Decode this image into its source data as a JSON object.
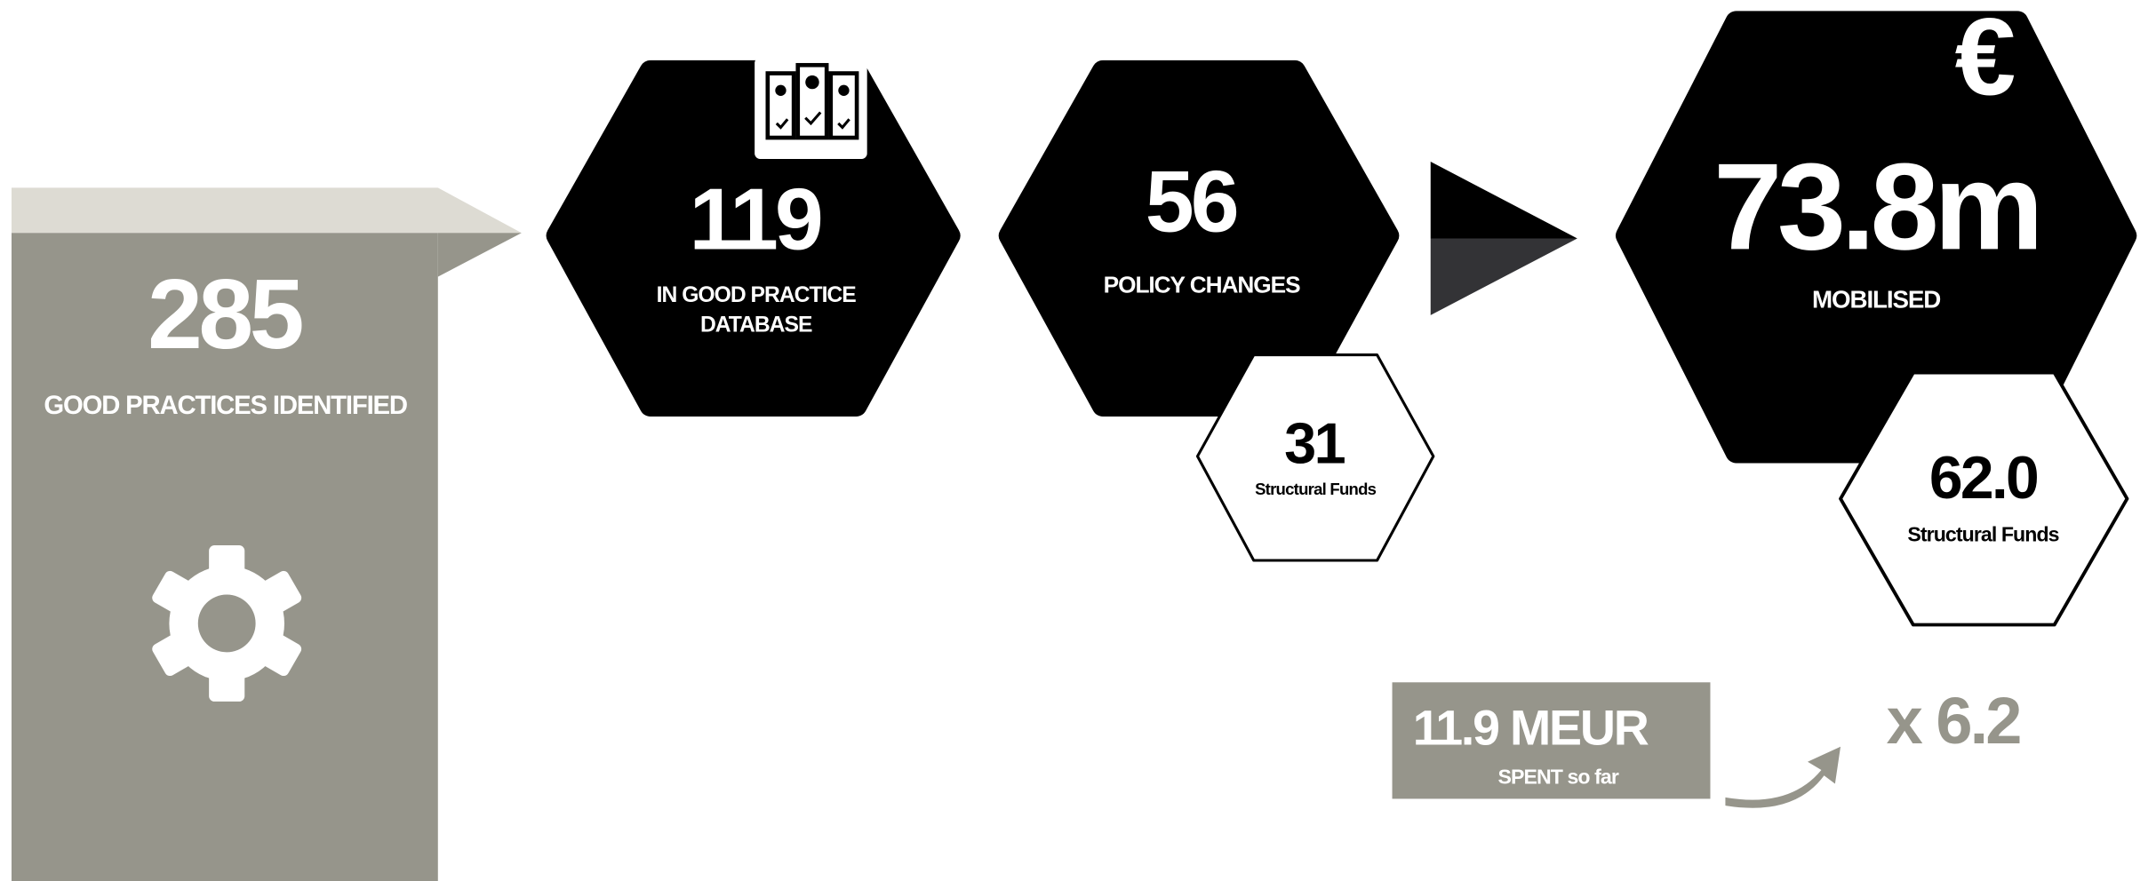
{
  "good_practices": {
    "value": "285",
    "label": "GOOD PRACTICES IDENTIFIED"
  },
  "database": {
    "value": "119",
    "label_lines": [
      "IN GOOD PRACTICE",
      "DATABASE"
    ]
  },
  "policy": {
    "value": "56",
    "label": "POLICY CHANGES",
    "sub": {
      "value": "31",
      "label": "Structural Funds"
    }
  },
  "mobilised": {
    "value": "73.8m",
    "label": "MOBILISED",
    "sub": {
      "value": "62.0",
      "label": "Structural Funds"
    }
  },
  "spent": {
    "value": "11.9 MEUR",
    "label": "SPENT so far"
  },
  "multiplier": "x 6.2"
}
